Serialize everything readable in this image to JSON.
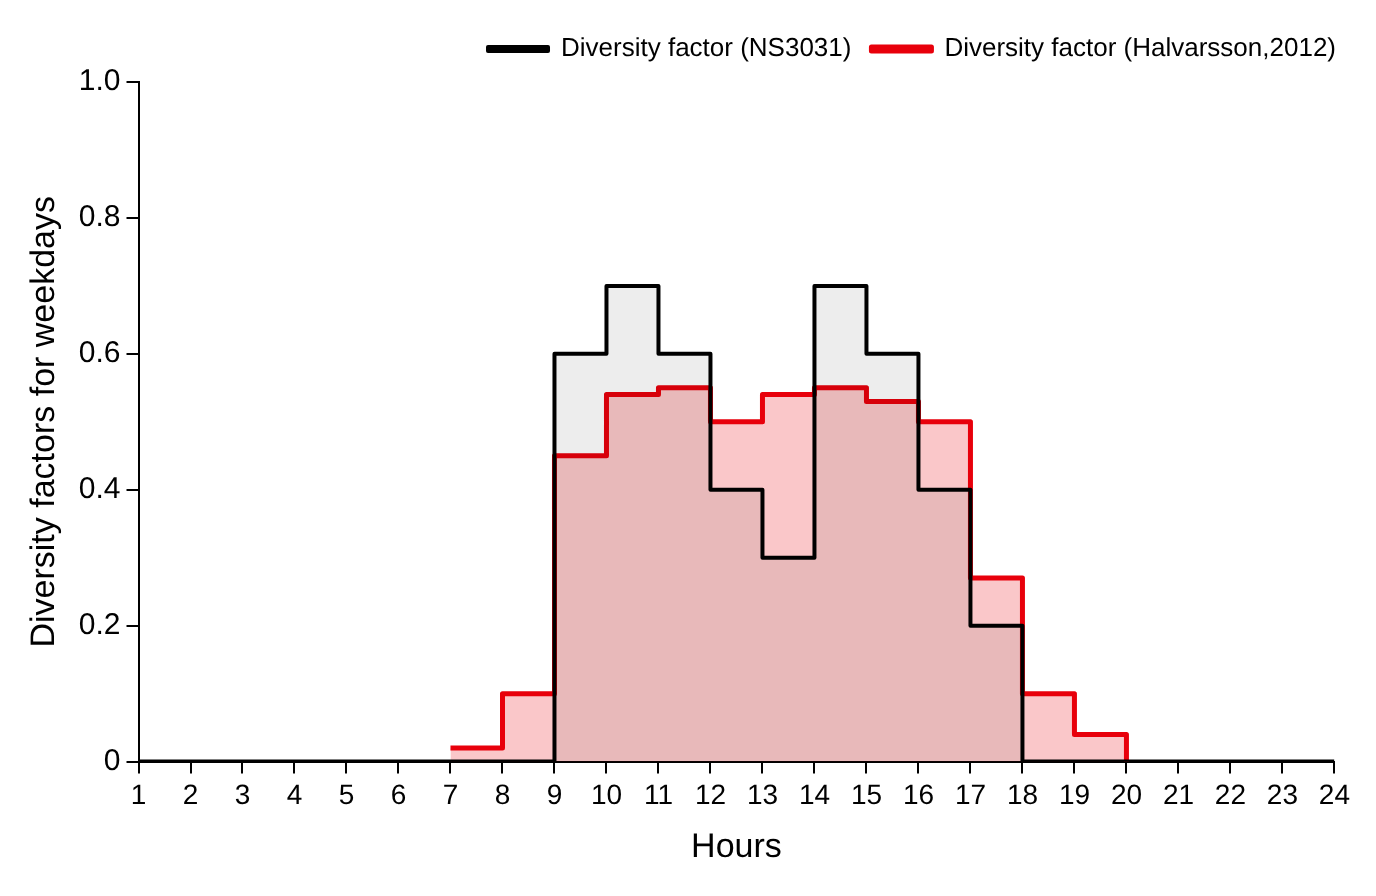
{
  "chart_data": {
    "type": "step",
    "xlabel": "Hours",
    "ylabel": "Diversity factors for weekdays",
    "x": [
      1,
      2,
      3,
      4,
      5,
      6,
      7,
      8,
      9,
      10,
      11,
      12,
      13,
      14,
      15,
      16,
      17,
      18,
      19,
      20,
      21,
      22,
      23,
      24
    ],
    "series": [
      {
        "name": "Diversity factor (NS3031)",
        "color": "#000000",
        "values": [
          0,
          0,
          0,
          0,
          0,
          0,
          0,
          0,
          0.6,
          0.7,
          0.6,
          0.4,
          0.3,
          0.7,
          0.6,
          0.4,
          0.2,
          0,
          0,
          0,
          0,
          0,
          0,
          0
        ]
      },
      {
        "name": "Diversity factor (Halvarsson,2012)",
        "color": "#e8000b",
        "values": [
          null,
          null,
          null,
          null,
          null,
          null,
          0.02,
          0.1,
          0.45,
          0.54,
          0.55,
          0.5,
          0.54,
          0.55,
          0.53,
          0.5,
          0.27,
          0.1,
          0.04,
          0,
          null,
          null,
          null,
          null
        ]
      }
    ],
    "xlim": [
      1,
      24
    ],
    "xticks": [
      1,
      2,
      3,
      4,
      5,
      6,
      7,
      8,
      9,
      10,
      11,
      12,
      13,
      14,
      15,
      16,
      17,
      18,
      19,
      20,
      21,
      22,
      23,
      24
    ],
    "ylim": [
      0,
      1
    ],
    "yticks": [
      0,
      0.2,
      0.4,
      0.6,
      0.8,
      {
        "value": 1,
        "label": "1.0"
      }
    ],
    "grid": false,
    "legend": "top right"
  }
}
